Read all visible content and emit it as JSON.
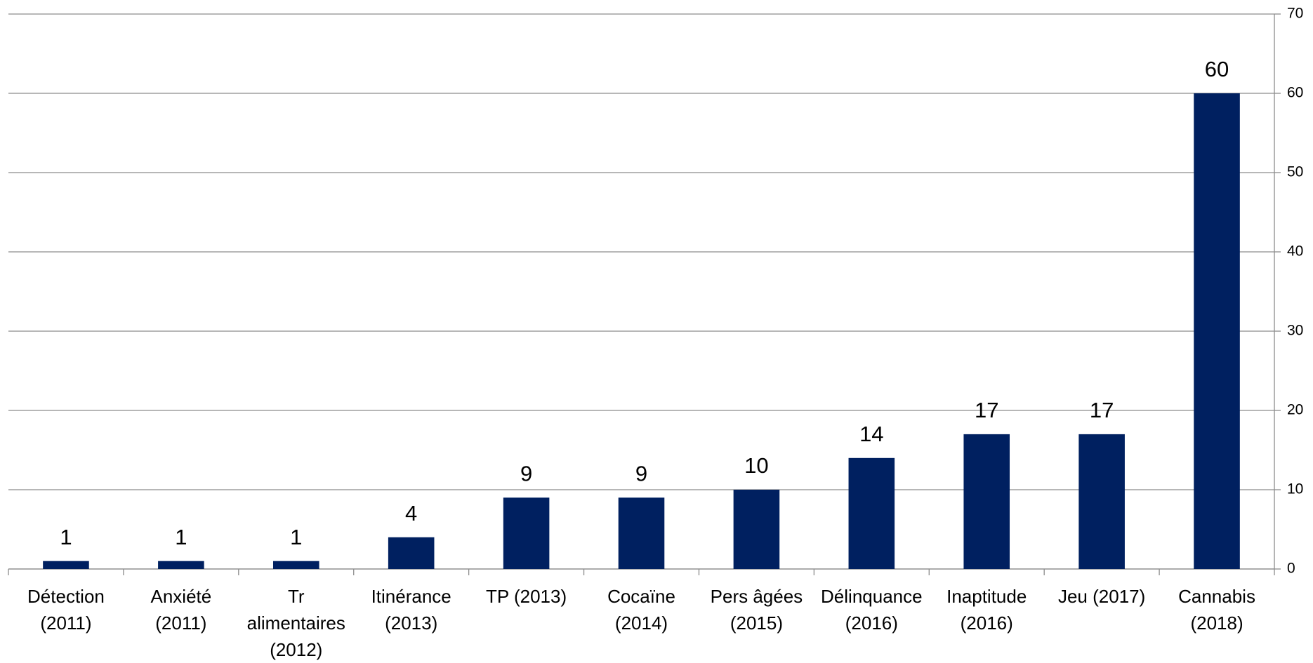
{
  "chart_data": {
    "type": "bar",
    "categories": [
      "Détection (2011)",
      "Anxiété (2011)",
      "Tr alimentaires (2012)",
      "Itinérance (2013)",
      "TP (2013)",
      "Cocaïne (2014)",
      "Pers âgées (2015)",
      "Délinquance (2016)",
      "Inaptitude (2016)",
      "Jeu (2017)",
      "Cannabis (2018)"
    ],
    "values": [
      1,
      1,
      1,
      4,
      9,
      9,
      10,
      14,
      17,
      17,
      60
    ],
    "color": "#002060",
    "ylim": [
      0,
      70
    ],
    "yticks": [
      0,
      10,
      20,
      30,
      40,
      50,
      60,
      70
    ],
    "y_axis_side": "right",
    "grid": true,
    "data_labels": true
  }
}
